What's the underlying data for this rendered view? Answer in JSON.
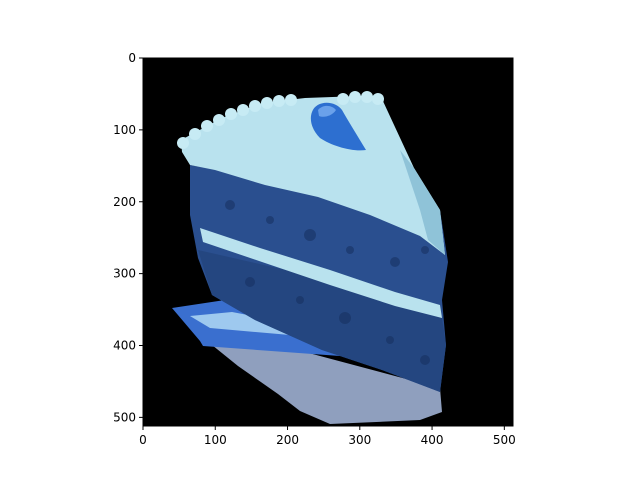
{
  "figure": {
    "background": "#ffffff",
    "axes_color": "#000000",
    "image_background": "#000000",
    "subject": "slice of blue velvet layer cake with light blue frosting"
  },
  "axes": {
    "x_range": [
      0,
      512
    ],
    "y_range": [
      512,
      0
    ],
    "x_ticks": [
      0,
      100,
      200,
      300,
      400,
      500
    ],
    "y_ticks": [
      0,
      100,
      200,
      300,
      400,
      500
    ],
    "x_tick_labels": [
      "0",
      "100",
      "200",
      "300",
      "400",
      "500"
    ],
    "y_tick_labels": [
      "0",
      "100",
      "200",
      "300",
      "400",
      "500"
    ]
  },
  "colors": {
    "frosting": "#b9e2ee",
    "frosting_shadow": "#8fc3d8",
    "cake": "#2a4f8f",
    "cake_dark": "#16305f",
    "candy": "#2d6fd0",
    "plate_shadow": "#8f9fbe"
  }
}
